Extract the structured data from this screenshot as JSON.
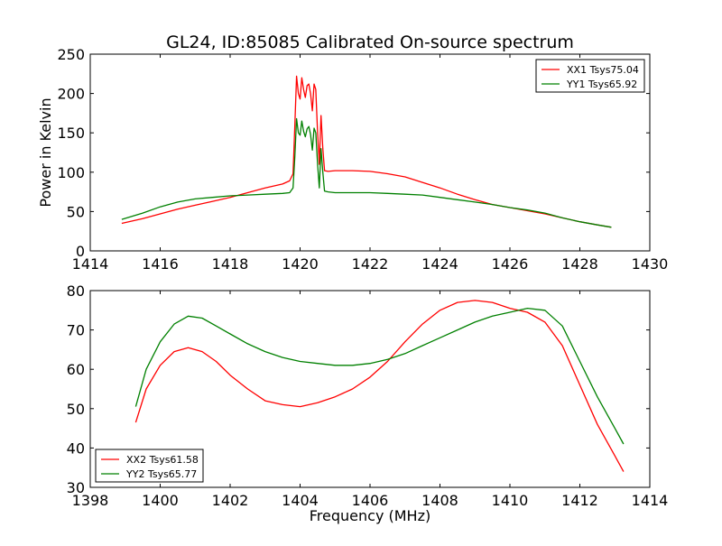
{
  "figure": {
    "title": "GL24, ID:85085 Calibrated On-source spectrum",
    "xlabel_bottom": "Frequency (MHz)"
  },
  "chart_data": [
    {
      "type": "line",
      "title": "GL24, ID:85085 Calibrated On-source spectrum",
      "xlabel": "",
      "ylabel": "Power in Kelvin",
      "xlim": [
        1414,
        1430
      ],
      "ylim": [
        0,
        250
      ],
      "xticks": [
        1414,
        1416,
        1418,
        1420,
        1422,
        1424,
        1426,
        1428,
        1430
      ],
      "yticks": [
        0,
        50,
        100,
        150,
        200,
        250
      ],
      "grid": false,
      "legend_position": "top-right",
      "series": [
        {
          "name": "XX1 Tsys75.04",
          "color": "#ff0000",
          "x": [
            1414.9,
            1415.5,
            1416.0,
            1416.5,
            1417.0,
            1417.5,
            1418.0,
            1418.5,
            1419.0,
            1419.5,
            1419.7,
            1419.8,
            1419.85,
            1419.9,
            1419.95,
            1420.0,
            1420.05,
            1420.1,
            1420.15,
            1420.2,
            1420.25,
            1420.3,
            1420.35,
            1420.4,
            1420.45,
            1420.5,
            1420.55,
            1420.6,
            1420.65,
            1420.7,
            1420.8,
            1421.0,
            1421.5,
            1422.0,
            1422.5,
            1423.0,
            1423.5,
            1424.0,
            1424.5,
            1425.0,
            1425.5,
            1426.0,
            1426.5,
            1427.0,
            1427.5,
            1428.0,
            1428.5,
            1428.9
          ],
          "y": [
            35,
            41,
            47,
            53,
            58,
            63,
            68,
            74,
            80,
            85,
            89,
            98,
            160,
            222,
            200,
            193,
            220,
            205,
            195,
            210,
            212,
            200,
            178,
            212,
            205,
            150,
            110,
            172,
            130,
            102,
            101,
            102,
            102,
            101,
            98,
            94,
            87,
            80,
            72,
            65,
            59,
            55,
            51,
            47,
            42,
            37,
            33,
            30
          ]
        },
        {
          "name": "YY1 Tsys65.92",
          "color": "#008000",
          "x": [
            1414.9,
            1415.5,
            1416.0,
            1416.5,
            1417.0,
            1417.5,
            1418.0,
            1418.5,
            1419.0,
            1419.5,
            1419.7,
            1419.8,
            1419.85,
            1419.9,
            1419.95,
            1420.0,
            1420.05,
            1420.1,
            1420.15,
            1420.2,
            1420.25,
            1420.3,
            1420.35,
            1420.4,
            1420.45,
            1420.5,
            1420.55,
            1420.6,
            1420.65,
            1420.7,
            1420.8,
            1421.0,
            1421.5,
            1422.0,
            1422.5,
            1423.0,
            1423.5,
            1424.0,
            1424.5,
            1425.0,
            1425.5,
            1426.0,
            1426.5,
            1427.0,
            1427.5,
            1428.0,
            1428.5,
            1428.9
          ],
          "y": [
            40,
            48,
            56,
            62,
            66,
            68,
            70,
            71,
            72,
            73,
            74,
            80,
            120,
            168,
            150,
            147,
            165,
            152,
            145,
            155,
            158,
            148,
            128,
            156,
            150,
            110,
            80,
            130,
            100,
            76,
            75,
            74,
            74,
            74,
            73,
            72,
            71,
            68,
            65,
            62,
            59,
            55,
            52,
            48,
            42,
            37,
            33,
            30
          ]
        }
      ]
    },
    {
      "type": "line",
      "title": "",
      "xlabel": "Frequency (MHz)",
      "ylabel": "",
      "xlim": [
        1398,
        1414
      ],
      "ylim": [
        30,
        80
      ],
      "xticks": [
        1398,
        1400,
        1402,
        1404,
        1406,
        1408,
        1410,
        1412,
        1414
      ],
      "yticks": [
        30,
        40,
        50,
        60,
        70,
        80
      ],
      "grid": false,
      "legend_position": "bottom-left",
      "series": [
        {
          "name": "XX2 Tsys61.58",
          "color": "#ff0000",
          "x": [
            1399.3,
            1399.6,
            1400.0,
            1400.4,
            1400.8,
            1401.2,
            1401.6,
            1402.0,
            1402.5,
            1403.0,
            1403.5,
            1404.0,
            1404.5,
            1405.0,
            1405.5,
            1406.0,
            1406.5,
            1407.0,
            1407.5,
            1408.0,
            1408.5,
            1409.0,
            1409.5,
            1410.0,
            1410.5,
            1411.0,
            1411.5,
            1412.0,
            1412.5,
            1413.0,
            1413.25
          ],
          "y": [
            46.5,
            55,
            61,
            64.5,
            65.5,
            64.5,
            62,
            58.5,
            55,
            52,
            51,
            50.5,
            51.5,
            53,
            55,
            58,
            62,
            67,
            71.5,
            75,
            77,
            77.5,
            77,
            75.5,
            74.5,
            72,
            66,
            56,
            46,
            38,
            34
          ]
        },
        {
          "name": "YY2 Tsys65.77",
          "color": "#008000",
          "x": [
            1399.3,
            1399.6,
            1400.0,
            1400.4,
            1400.8,
            1401.2,
            1401.6,
            1402.0,
            1402.5,
            1403.0,
            1403.5,
            1404.0,
            1404.5,
            1405.0,
            1405.5,
            1406.0,
            1406.5,
            1407.0,
            1407.5,
            1408.0,
            1408.5,
            1409.0,
            1409.5,
            1410.0,
            1410.5,
            1411.0,
            1411.5,
            1412.0,
            1412.5,
            1413.0,
            1413.25
          ],
          "y": [
            50.5,
            60,
            67,
            71.5,
            73.5,
            73,
            71,
            69,
            66.5,
            64.5,
            63,
            62,
            61.5,
            61,
            61,
            61.5,
            62.5,
            64,
            66,
            68,
            70,
            72,
            73.5,
            74.5,
            75.5,
            75,
            71,
            62,
            53,
            45,
            41
          ]
        }
      ]
    }
  ]
}
